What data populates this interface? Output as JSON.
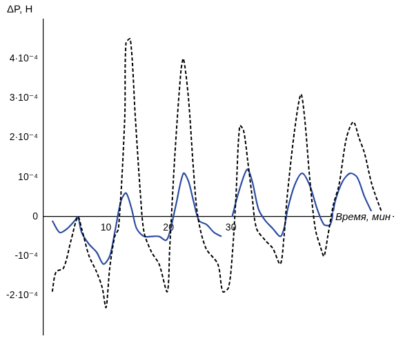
{
  "chart_data": {
    "type": "line",
    "y_label": "ΔP, Н",
    "x_label": "Время, мин",
    "xlim": [
      0,
      56
    ],
    "xticks": [
      10,
      20,
      30
    ],
    "ylim": [
      -0.0003,
      0.0005
    ],
    "yticks": [
      {
        "value": -0.0002,
        "label": "-2·10⁻⁴"
      },
      {
        "value": -0.0001,
        "label": "-10⁻⁴"
      },
      0,
      {
        "value": 0.0001,
        "label": "10⁻⁴"
      },
      {
        "value": 0.0002,
        "label": "2·10⁻⁴"
      },
      {
        "value": 0.0003,
        "label": "3·10⁻⁴"
      },
      {
        "value": 0.0004,
        "label": "4·10⁻⁴"
      }
    ],
    "grid": false,
    "series": [
      {
        "color": "#000000",
        "line_style": "dashed",
        "x": [
          1.4,
          2.0,
          3.2,
          4.4,
          5.5,
          6.1,
          7.3,
          8.5,
          9.4,
          10.0,
          10.6,
          11.4,
          12.0,
          13.0,
          13.2,
          13.9,
          14.7,
          15.5,
          16.1,
          17.3,
          18.5,
          19.8,
          20.2,
          21.0,
          22.0,
          22.4,
          23.2,
          24.0,
          24.7,
          26.0,
          27.9,
          28.7,
          29.6,
          30.2,
          30.8,
          31.4,
          32.0,
          32.7,
          33.4,
          34.1,
          35.5,
          36.7,
          37.9,
          38.5,
          39.0,
          40.2,
          41.2,
          41.8,
          42.6,
          43.5,
          44.4,
          44.9,
          45.5,
          46.4,
          47.3,
          48.5,
          49.6,
          50.5,
          51.4,
          52.6,
          54.4
        ],
        "values": [
          -0.00019,
          -0.00014,
          -0.00013,
          -6e-05,
          0.0,
          -3e-05,
          -0.0001,
          -0.00014,
          -0.00018,
          -0.00023,
          -0.00013,
          -5e-05,
          -3e-05,
          0.00025,
          0.00044,
          0.00045,
          0.00025,
          6e-05,
          -4e-05,
          -9e-05,
          -0.00012,
          -0.00019,
          -8e-05,
          0.00015,
          0.00037,
          0.0004,
          0.0003,
          0.00012,
          0.0,
          -8e-05,
          -0.00012,
          -0.00019,
          -0.00018,
          -0.0001,
          5e-05,
          0.00023,
          0.00022,
          0.00014,
          5e-05,
          -3e-05,
          -6e-05,
          -8e-05,
          -0.00012,
          -5e-05,
          5e-05,
          0.00022,
          0.00031,
          0.00025,
          0.0001,
          -3e-05,
          -8e-05,
          -0.0001,
          -5e-05,
          3e-05,
          8e-05,
          0.0002,
          0.00024,
          0.0002,
          0.00016,
          8e-05,
          0.0
        ]
      },
      {
        "color": "#2b4c9f",
        "line_style": "solid",
        "x": [
          1.4,
          2.6,
          3.8,
          5.0,
          5.5,
          6.1,
          7.3,
          8.5,
          9.6,
          10.6,
          11.4,
          12.4,
          13.2,
          14.1,
          14.9,
          16.1,
          17.3,
          18.5,
          19.6,
          20.2,
          21.2,
          22.4,
          23.2,
          24.0,
          24.9,
          26.1,
          27.3,
          28.5,
          29.2,
          30.2,
          31.2,
          32.6,
          33.4,
          34.4,
          35.5,
          36.7,
          37.9,
          38.5,
          39.1,
          40.2,
          41.4,
          42.6,
          43.8,
          44.9,
          45.9,
          46.7,
          47.9,
          49.1,
          50.2,
          51.4,
          52.9
        ],
        "values": [
          -1e-05,
          -4e-05,
          -3e-05,
          -1e-05,
          0.0,
          -4e-05,
          -7e-05,
          -9e-05,
          -0.00012,
          -0.0001,
          -4e-05,
          4e-05,
          6e-05,
          2e-05,
          -3e-05,
          -5e-05,
          -5e-05,
          -5e-05,
          -6e-05,
          -4e-05,
          3e-05,
          0.00011,
          9e-05,
          4e-05,
          -1e-05,
          -2e-05,
          -4e-05,
          -5e-05,
          null,
          0.0,
          6e-05,
          0.00012,
          9e-05,
          2e-05,
          -1e-05,
          -3e-05,
          -5e-05,
          -3e-05,
          2e-05,
          8e-05,
          0.00011,
          8e-05,
          2e-05,
          -2e-05,
          -2e-05,
          4e-05,
          9e-05,
          0.00011,
          0.0001,
          5e-05,
          0.0
        ]
      }
    ]
  }
}
